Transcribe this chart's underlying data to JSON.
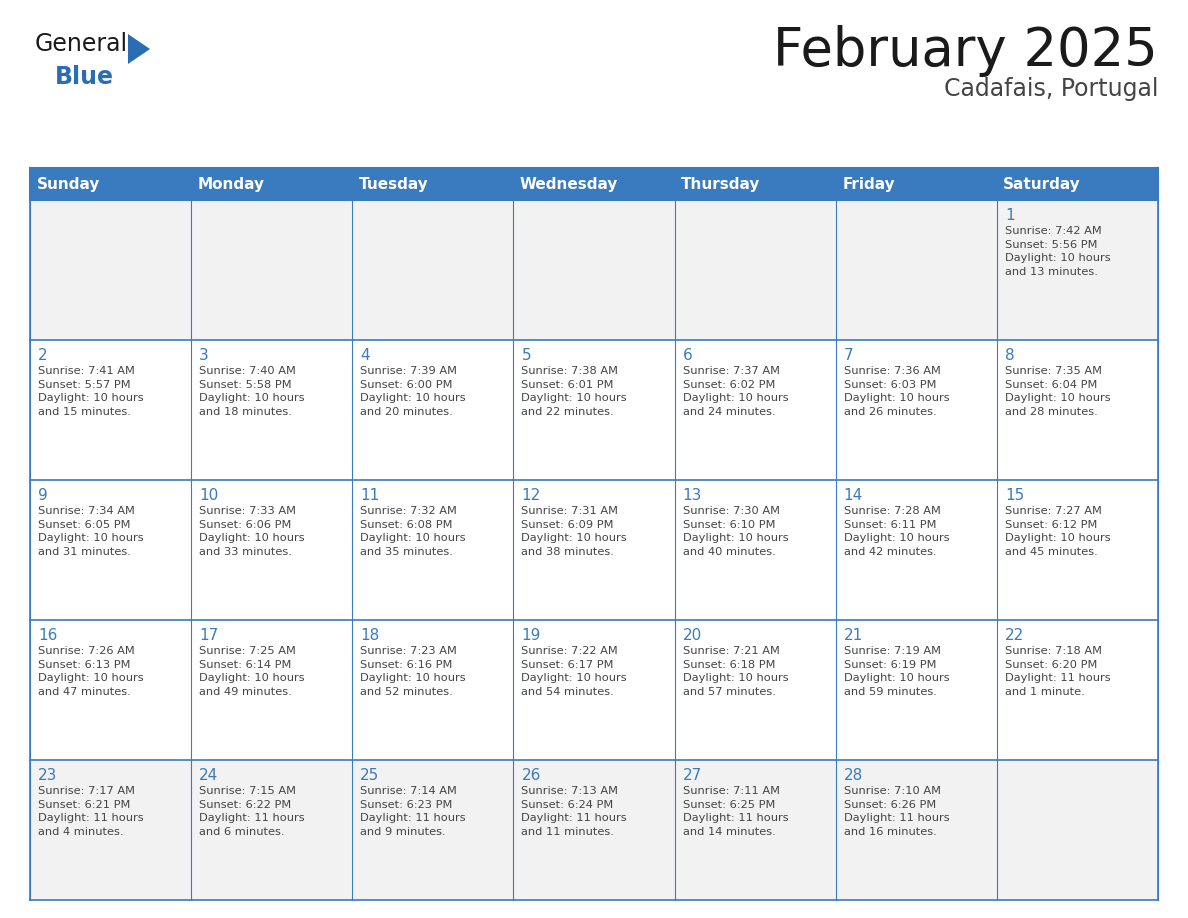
{
  "title": "February 2025",
  "subtitle": "Cadafais, Portugal",
  "header_color": "#3a7abf",
  "header_text_color": "#ffffff",
  "cell_bg_color": "#ffffff",
  "alt_row_bg": "#f2f2f2",
  "border_color": "#3a7abf",
  "day_names": [
    "Sunday",
    "Monday",
    "Tuesday",
    "Wednesday",
    "Thursday",
    "Friday",
    "Saturday"
  ],
  "title_color": "#1a1a1a",
  "subtitle_color": "#444444",
  "text_color": "#444444",
  "day_num_color": "#3a7abf",
  "weeks": [
    [
      {
        "day": null,
        "info": null
      },
      {
        "day": null,
        "info": null
      },
      {
        "day": null,
        "info": null
      },
      {
        "day": null,
        "info": null
      },
      {
        "day": null,
        "info": null
      },
      {
        "day": null,
        "info": null
      },
      {
        "day": "1",
        "info": "Sunrise: 7:42 AM\nSunset: 5:56 PM\nDaylight: 10 hours\nand 13 minutes."
      }
    ],
    [
      {
        "day": "2",
        "info": "Sunrise: 7:41 AM\nSunset: 5:57 PM\nDaylight: 10 hours\nand 15 minutes."
      },
      {
        "day": "3",
        "info": "Sunrise: 7:40 AM\nSunset: 5:58 PM\nDaylight: 10 hours\nand 18 minutes."
      },
      {
        "day": "4",
        "info": "Sunrise: 7:39 AM\nSunset: 6:00 PM\nDaylight: 10 hours\nand 20 minutes."
      },
      {
        "day": "5",
        "info": "Sunrise: 7:38 AM\nSunset: 6:01 PM\nDaylight: 10 hours\nand 22 minutes."
      },
      {
        "day": "6",
        "info": "Sunrise: 7:37 AM\nSunset: 6:02 PM\nDaylight: 10 hours\nand 24 minutes."
      },
      {
        "day": "7",
        "info": "Sunrise: 7:36 AM\nSunset: 6:03 PM\nDaylight: 10 hours\nand 26 minutes."
      },
      {
        "day": "8",
        "info": "Sunrise: 7:35 AM\nSunset: 6:04 PM\nDaylight: 10 hours\nand 28 minutes."
      }
    ],
    [
      {
        "day": "9",
        "info": "Sunrise: 7:34 AM\nSunset: 6:05 PM\nDaylight: 10 hours\nand 31 minutes."
      },
      {
        "day": "10",
        "info": "Sunrise: 7:33 AM\nSunset: 6:06 PM\nDaylight: 10 hours\nand 33 minutes."
      },
      {
        "day": "11",
        "info": "Sunrise: 7:32 AM\nSunset: 6:08 PM\nDaylight: 10 hours\nand 35 minutes."
      },
      {
        "day": "12",
        "info": "Sunrise: 7:31 AM\nSunset: 6:09 PM\nDaylight: 10 hours\nand 38 minutes."
      },
      {
        "day": "13",
        "info": "Sunrise: 7:30 AM\nSunset: 6:10 PM\nDaylight: 10 hours\nand 40 minutes."
      },
      {
        "day": "14",
        "info": "Sunrise: 7:28 AM\nSunset: 6:11 PM\nDaylight: 10 hours\nand 42 minutes."
      },
      {
        "day": "15",
        "info": "Sunrise: 7:27 AM\nSunset: 6:12 PM\nDaylight: 10 hours\nand 45 minutes."
      }
    ],
    [
      {
        "day": "16",
        "info": "Sunrise: 7:26 AM\nSunset: 6:13 PM\nDaylight: 10 hours\nand 47 minutes."
      },
      {
        "day": "17",
        "info": "Sunrise: 7:25 AM\nSunset: 6:14 PM\nDaylight: 10 hours\nand 49 minutes."
      },
      {
        "day": "18",
        "info": "Sunrise: 7:23 AM\nSunset: 6:16 PM\nDaylight: 10 hours\nand 52 minutes."
      },
      {
        "day": "19",
        "info": "Sunrise: 7:22 AM\nSunset: 6:17 PM\nDaylight: 10 hours\nand 54 minutes."
      },
      {
        "day": "20",
        "info": "Sunrise: 7:21 AM\nSunset: 6:18 PM\nDaylight: 10 hours\nand 57 minutes."
      },
      {
        "day": "21",
        "info": "Sunrise: 7:19 AM\nSunset: 6:19 PM\nDaylight: 10 hours\nand 59 minutes."
      },
      {
        "day": "22",
        "info": "Sunrise: 7:18 AM\nSunset: 6:20 PM\nDaylight: 11 hours\nand 1 minute."
      }
    ],
    [
      {
        "day": "23",
        "info": "Sunrise: 7:17 AM\nSunset: 6:21 PM\nDaylight: 11 hours\nand 4 minutes."
      },
      {
        "day": "24",
        "info": "Sunrise: 7:15 AM\nSunset: 6:22 PM\nDaylight: 11 hours\nand 6 minutes."
      },
      {
        "day": "25",
        "info": "Sunrise: 7:14 AM\nSunset: 6:23 PM\nDaylight: 11 hours\nand 9 minutes."
      },
      {
        "day": "26",
        "info": "Sunrise: 7:13 AM\nSunset: 6:24 PM\nDaylight: 11 hours\nand 11 minutes."
      },
      {
        "day": "27",
        "info": "Sunrise: 7:11 AM\nSunset: 6:25 PM\nDaylight: 11 hours\nand 14 minutes."
      },
      {
        "day": "28",
        "info": "Sunrise: 7:10 AM\nSunset: 6:26 PM\nDaylight: 11 hours\nand 16 minutes."
      },
      {
        "day": null,
        "info": null
      }
    ]
  ],
  "alt_rows": [
    0,
    4
  ],
  "logo_text_general": "General",
  "logo_text_blue": "Blue",
  "logo_color_general": "#1a1a1a",
  "logo_color_blue": "#2a6db5",
  "logo_triangle_color": "#2a6db5",
  "figsize": [
    11.88,
    9.18
  ],
  "dpi": 100
}
